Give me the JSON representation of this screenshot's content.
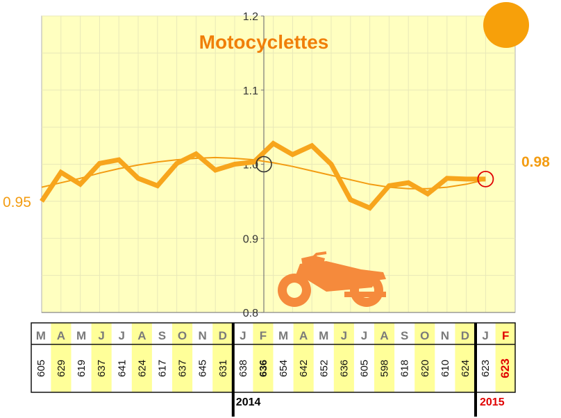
{
  "chart_data": {
    "type": "line",
    "title": "Motocyclettes",
    "y_ticks": [
      "0.8",
      "0.9",
      "1.0",
      "1.1",
      "1.2"
    ],
    "ylim": [
      0.8,
      1.2
    ],
    "grid": true,
    "months": [
      "M",
      "A",
      "M",
      "J",
      "J",
      "A",
      "S",
      "O",
      "N",
      "D",
      "J",
      "F",
      "M",
      "A",
      "M",
      "J",
      "J",
      "A",
      "S",
      "O",
      "N",
      "D",
      "J",
      "F"
    ],
    "counts": [
      "605",
      "629",
      "619",
      "637",
      "641",
      "624",
      "617",
      "637",
      "645",
      "631",
      "638",
      "636",
      "654",
      "642",
      "652",
      "636",
      "605",
      "598",
      "618",
      "620",
      "610",
      "624",
      "623",
      "623"
    ],
    "series": [
      {
        "values": [
          0.95,
          0.989,
          0.973,
          1.001,
          1.006,
          0.981,
          0.971,
          1.001,
          1.014,
          0.992,
          1.0,
          1.003,
          1.028,
          1.013,
          1.025,
          1.0,
          0.952,
          0.941,
          0.971,
          0.975,
          0.96,
          0.981,
          0.98,
          0.98
        ]
      },
      {
        "values": [
          0.969,
          0.975,
          0.981,
          0.988,
          0.994,
          0.999,
          1.003,
          1.006,
          1.008,
          1.009,
          1.008,
          1.006,
          1.002,
          0.997,
          0.991,
          0.985,
          0.979,
          0.973,
          0.969,
          0.967,
          0.967,
          0.969,
          0.973,
          0.979
        ]
      }
    ],
    "start_label": "0.95",
    "end_label": "0.98",
    "year_labels": [
      "2014",
      "2015"
    ],
    "colors": {
      "line": "#f7a51c",
      "trend": "#f39c12",
      "title": "#f07f09",
      "plot_bg": "#ffffc0",
      "highlight": "#ffff99",
      "red": "#e00000",
      "dot": "#f7a00a",
      "moto": "#f58a3c"
    }
  }
}
